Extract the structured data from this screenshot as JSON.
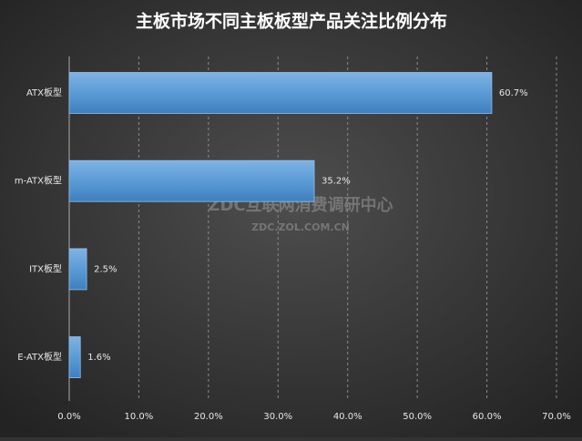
{
  "chart_data": {
    "type": "hbar",
    "title": "主板市场不同主板板型产品关注比例分布",
    "categories": [
      "ATX板型",
      "m-ATX板型",
      "ITX板型",
      "E-ATX板型"
    ],
    "values": [
      60.7,
      35.2,
      2.5,
      1.6
    ],
    "value_labels": [
      "60.7%",
      "35.2%",
      "2.5%",
      "1.6%"
    ],
    "color": "#5b9bd5",
    "xlim": [
      0,
      70
    ],
    "xticks": [
      {
        "value": 0,
        "label": "0.0%"
      },
      {
        "value": 10,
        "label": "10.0%"
      },
      {
        "value": 20,
        "label": "20.0%"
      },
      {
        "value": 30,
        "label": "30.0%"
      },
      {
        "value": 40,
        "label": "40.0%"
      },
      {
        "value": 50,
        "label": "50.0%"
      },
      {
        "value": 60,
        "label": "60.0%"
      },
      {
        "value": 70,
        "label": "70.0%"
      }
    ],
    "grid": true,
    "watermark": [
      "ZDC互联网消费调研中心",
      "ZDC.ZOL.COM.CN"
    ]
  }
}
